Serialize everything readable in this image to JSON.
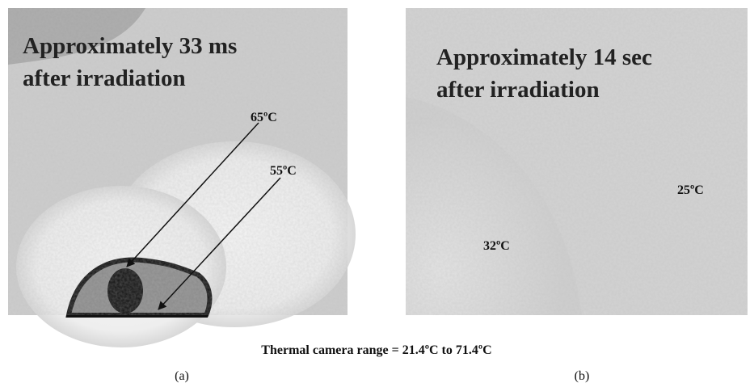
{
  "panels": [
    {
      "label": "(a)",
      "title_lines": [
        "Approximately 33 ms",
        "after irradiation"
      ],
      "temperatures": [
        "65ºC",
        "55ºC"
      ]
    },
    {
      "label": "(b)",
      "title_lines": [
        "Approximately 14 sec",
        "after irradiation"
      ],
      "temperatures": [
        "25ºC",
        "32ºC"
      ]
    }
  ],
  "caption": "Thermal camera range = 21.4ºC to 71.4ºC"
}
